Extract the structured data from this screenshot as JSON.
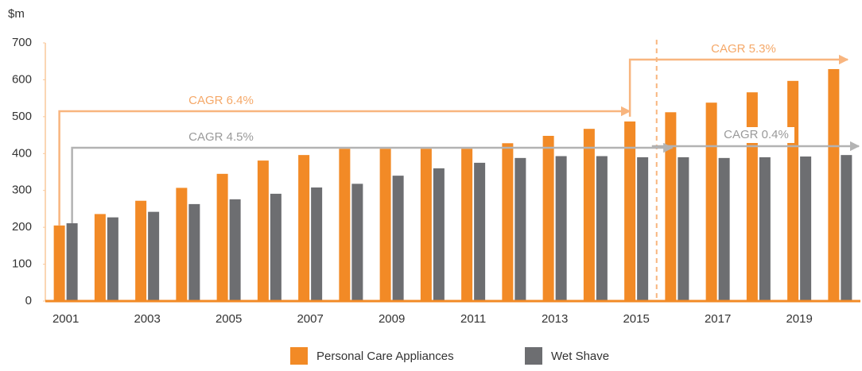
{
  "chart_data": {
    "type": "bar",
    "y_label": "$m",
    "categories": [
      "2001",
      null,
      "2003",
      null,
      "2005",
      null,
      "2007",
      null,
      "2009",
      null,
      "2011",
      null,
      "2013",
      null,
      "2015",
      null,
      "2017",
      null,
      "2019",
      null
    ],
    "series": [
      {
        "name": "Personal Care Appliances",
        "color": "#f28a26",
        "values": [
          205,
          236,
          272,
          307,
          345,
          381,
          396,
          413,
          413,
          413,
          413,
          428,
          448,
          467,
          487,
          512,
          538,
          566,
          597,
          629
        ]
      },
      {
        "name": "Wet Shave",
        "color": "#6d6e71",
        "values": [
          211,
          227,
          242,
          263,
          276,
          291,
          308,
          318,
          340,
          360,
          375,
          388,
          393,
          393,
          390,
          390,
          388,
          390,
          392,
          396
        ]
      }
    ],
    "ylim": [
      0,
      700
    ],
    "yticks": [
      0,
      100,
      200,
      300,
      400,
      500,
      600,
      700
    ],
    "annotations": [
      "CAGR 6.4%",
      "CAGR 4.5%",
      "CAGR 5.3%",
      "CAGR 0.4%"
    ]
  }
}
